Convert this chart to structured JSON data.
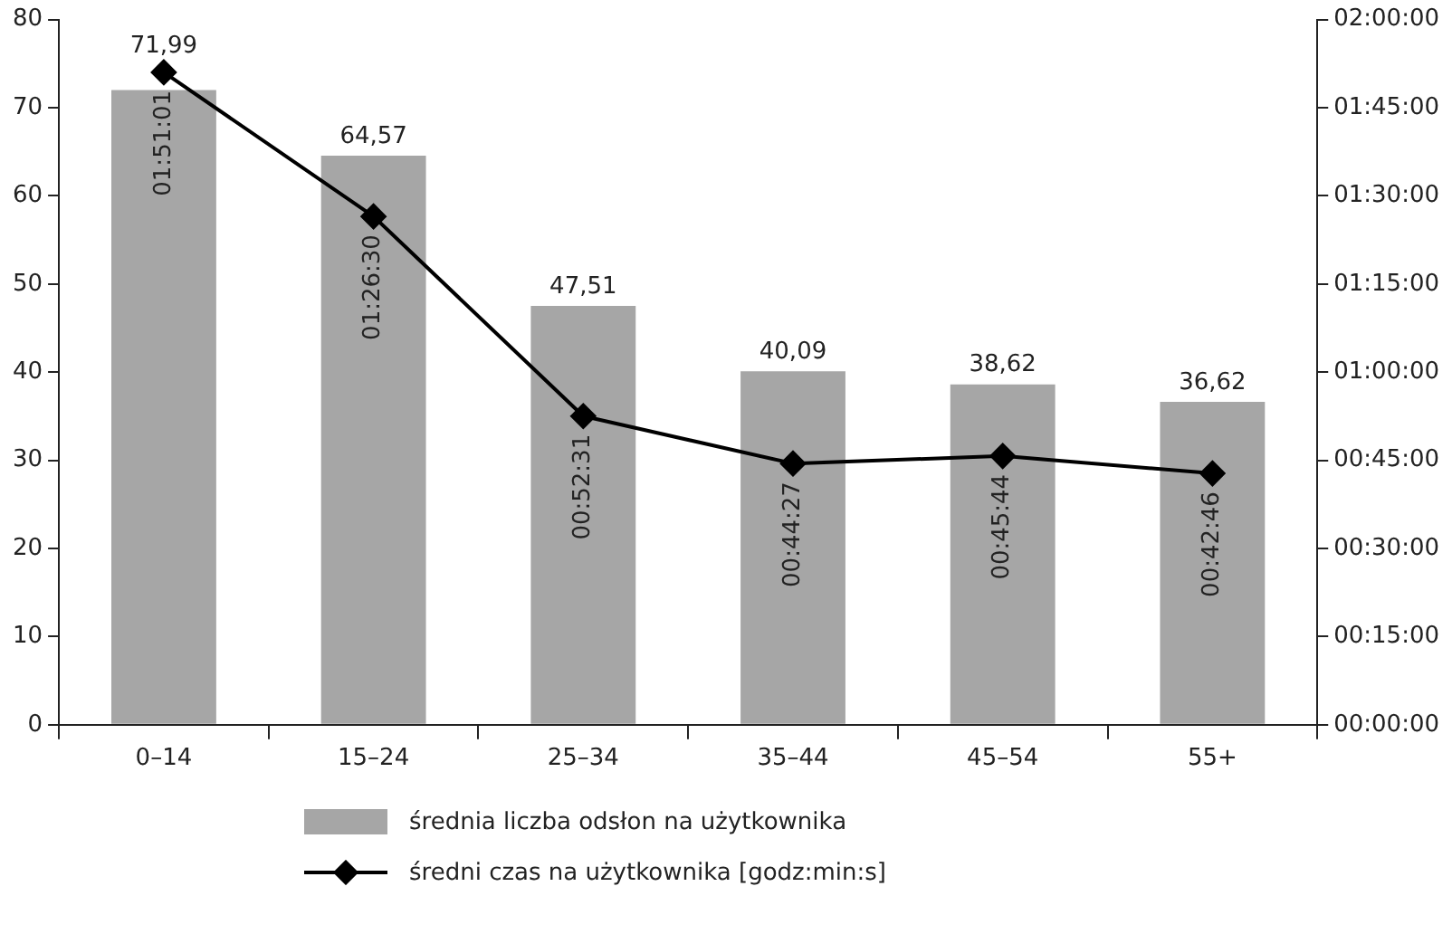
{
  "chart_data": {
    "type": "bar",
    "categories": [
      "0–14",
      "15–24",
      "25–34",
      "35–44",
      "45–54",
      "55+"
    ],
    "series": [
      {
        "name": "średnia liczba odsłon na użytkownika",
        "color": "#a6a6a6",
        "values": [
          71.99,
          64.57,
          47.51,
          40.09,
          38.62,
          36.62
        ],
        "value_labels": [
          "71,99",
          "64,57",
          "47,51",
          "40,09",
          "38,62",
          "36,62"
        ]
      },
      {
        "type": "line",
        "axis": "y2",
        "name": "średni czas na użytkownika [godz:min:s]",
        "color": "#000000",
        "values": [
          1.850278,
          1.441667,
          0.875278,
          0.740833,
          0.762222,
          0.712778
        ],
        "value_labels": [
          "01:51:01",
          "01:26:30",
          "00:52:31",
          "00:44:27",
          "00:45:44",
          "00:42:46"
        ]
      }
    ],
    "ylim": [
      0,
      80
    ],
    "yticks": [
      0,
      10,
      20,
      30,
      40,
      50,
      60,
      70,
      80
    ],
    "y2lim": [
      0,
      2
    ],
    "y2ticks": [
      {
        "value": 0,
        "label": "00:00:00"
      },
      {
        "value": 0.25,
        "label": "00:15:00"
      },
      {
        "value": 0.5,
        "label": "00:30:00"
      },
      {
        "value": 0.75,
        "label": "00:45:00"
      },
      {
        "value": 1,
        "label": "01:00:00"
      },
      {
        "value": 1.25,
        "label": "01:15:00"
      },
      {
        "value": 1.5,
        "label": "01:30:00"
      },
      {
        "value": 1.75,
        "label": "01:45:00"
      },
      {
        "value": 2,
        "label": "02:00:00"
      }
    ],
    "grid": false,
    "legend": "bottom",
    "marker": "diamond",
    "line_style": "solid"
  }
}
